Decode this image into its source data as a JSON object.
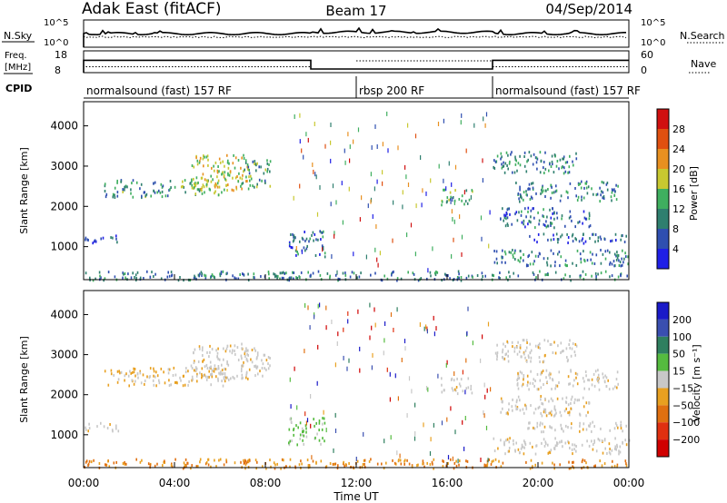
{
  "header": {
    "station": "Adak East (fitACF)",
    "beam": "Beam 17",
    "date": "04/Sep/2014"
  },
  "chart_data": [
    {
      "type": "line",
      "name": "noise-panel",
      "left_label": "N.Sky",
      "right_label": "N.Search",
      "left_ticks": [
        "10^5",
        "10^0"
      ],
      "right_ticks": [
        "10^5",
        "10^0"
      ],
      "series": [
        {
          "name": "N.Sky",
          "style": "solid"
        },
        {
          "name": "N.Search",
          "style": "dotted"
        }
      ]
    },
    {
      "type": "line",
      "name": "frequency-panel",
      "left_label": "Freq. [MHz]",
      "right_label": "Nave",
      "left_ticks": [
        "18",
        "8"
      ],
      "right_ticks": [
        "60",
        "0"
      ],
      "freq_steps": [
        {
          "start_hour": 0,
          "end_hour": 10,
          "value_mhz": 16.5
        },
        {
          "start_hour": 10,
          "end_hour": 18,
          "value_mhz": 10.5
        },
        {
          "start_hour": 18,
          "end_hour": 24,
          "value_mhz": 16.5
        }
      ]
    },
    {
      "type": "table",
      "name": "cpid-panel",
      "label": "CPID",
      "segments": [
        {
          "start_hour": 0,
          "end_hour": 12,
          "text": "normalsound (fast) 157 RF"
        },
        {
          "start_hour": 12,
          "end_hour": 18,
          "text": "rbsp 200 RF"
        },
        {
          "start_hour": 18,
          "end_hour": 24,
          "text": "normalsound (fast) 157 RF"
        }
      ]
    },
    {
      "type": "heatmap",
      "name": "power-panel",
      "ylabel": "Slant Range [km]",
      "ylim": [
        180,
        4600
      ],
      "yticks": [
        1000,
        2000,
        3000,
        4000
      ],
      "colorbar_label": "Power [dB]",
      "colorbar_ticks": [
        4,
        8,
        12,
        16,
        20,
        24,
        28
      ],
      "colorbar_range": [
        0,
        32
      ],
      "colors": [
        "#1f1fe6",
        "#2f4fb0",
        "#2f7f6f",
        "#3faf5f",
        "#c8c830",
        "#e89020",
        "#e05010",
        "#d01010"
      ],
      "echo_regions": [
        {
          "x": [
            0.9,
            3.8
          ],
          "y": [
            2250,
            2700
          ],
          "level": 0.35
        },
        {
          "x": [
            3.8,
            6.3
          ],
          "y": [
            2300,
            2700
          ],
          "level": 0.45
        },
        {
          "x": [
            4.7,
            7.2
          ],
          "y": [
            2400,
            3300
          ],
          "level": 0.55
        },
        {
          "x": [
            6.9,
            8.2
          ],
          "y": [
            2450,
            3200
          ],
          "level": 0.4
        },
        {
          "x": [
            0.0,
            1.6
          ],
          "y": [
            1120,
            1320
          ],
          "level": 0.2
        },
        {
          "x": [
            9.0,
            10.6
          ],
          "y": [
            780,
            1450
          ],
          "level": 0.25
        },
        {
          "x": [
            15.7,
            17.1
          ],
          "y": [
            2050,
            2450
          ],
          "level": 0.4
        },
        {
          "x": [
            18.0,
            21.7
          ],
          "y": [
            2850,
            3400
          ],
          "level": 0.3
        },
        {
          "x": [
            19.0,
            23.5
          ],
          "y": [
            2150,
            2650
          ],
          "level": 0.3
        },
        {
          "x": [
            18.3,
            22.3
          ],
          "y": [
            1500,
            2000
          ],
          "level": 0.25
        },
        {
          "x": [
            19.5,
            24.0
          ],
          "y": [
            1100,
            1350
          ],
          "level": 0.2
        },
        {
          "x": [
            18.0,
            24.0
          ],
          "y": [
            550,
            950
          ],
          "level": 0.3
        },
        {
          "x": [
            0.0,
            24.0
          ],
          "y": [
            190,
            420
          ],
          "level": 0.3
        }
      ]
    },
    {
      "type": "heatmap",
      "name": "velocity-panel",
      "ylabel": "Slant Range [km]",
      "ylim": [
        180,
        4600
      ],
      "yticks": [
        1000,
        2000,
        3000,
        4000
      ],
      "xlabel": "Time UT",
      "xticks": [
        "00:00",
        "04:00",
        "08:00",
        "12:00",
        "16:00",
        "20:00",
        "00:00"
      ],
      "colorbar_label": "Velocity [m s⁻¹]",
      "colorbar_ticks": [
        "200",
        "100",
        "50",
        "15",
        "−15",
        "−50",
        "−100",
        "−200"
      ],
      "colors": [
        "#1a1ac8",
        "#3a4fb0",
        "#2f7f5f",
        "#55bb3f",
        "#c8c8c8",
        "#e8a020",
        "#e07010",
        "#e03010",
        "#d00000"
      ],
      "echo_regions": [
        {
          "x": [
            0.9,
            6.3
          ],
          "y": [
            2250,
            2700
          ],
          "class": "neg-small"
        },
        {
          "x": [
            4.7,
            7.2
          ],
          "y": [
            2400,
            3300
          ],
          "class": "gray"
        },
        {
          "x": [
            6.9,
            8.2
          ],
          "y": [
            2450,
            3200
          ],
          "class": "gray"
        },
        {
          "x": [
            0.0,
            1.6
          ],
          "y": [
            1120,
            1320
          ],
          "class": "gray"
        },
        {
          "x": [
            9.0,
            10.6
          ],
          "y": [
            780,
            1450
          ],
          "class": "green"
        },
        {
          "x": [
            15.7,
            17.1
          ],
          "y": [
            2050,
            2450
          ],
          "class": "gray"
        },
        {
          "x": [
            18.0,
            21.7
          ],
          "y": [
            2850,
            3400
          ],
          "class": "gray"
        },
        {
          "x": [
            19.0,
            23.5
          ],
          "y": [
            2150,
            2650
          ],
          "class": "gray"
        },
        {
          "x": [
            18.3,
            22.3
          ],
          "y": [
            1500,
            2000
          ],
          "class": "gray"
        },
        {
          "x": [
            19.5,
            24.0
          ],
          "y": [
            1100,
            1350
          ],
          "class": "gray"
        },
        {
          "x": [
            18.0,
            24.0
          ],
          "y": [
            550,
            950
          ],
          "class": "gray"
        },
        {
          "x": [
            0.0,
            24.0
          ],
          "y": [
            190,
            420
          ],
          "class": "orange"
        }
      ]
    }
  ]
}
